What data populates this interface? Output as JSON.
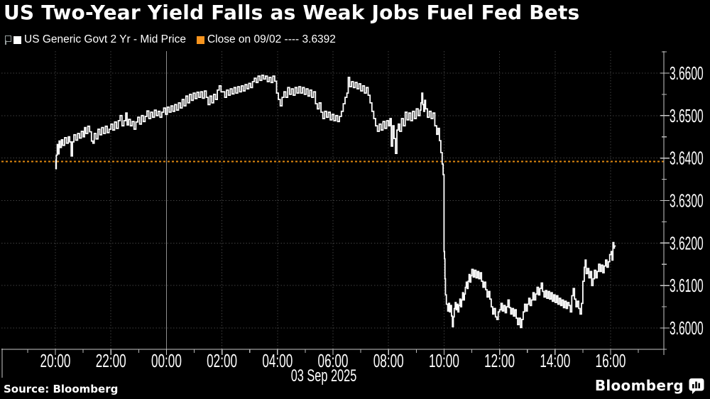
{
  "header": {
    "title": "US Two-Year Yield Falls as Weak Jobs Fuel Fed Bets"
  },
  "legend": {
    "series_label": "US Generic Govt 2 Yr - Mid Price",
    "series_marker_color": "#ffffff",
    "close_label": "Close on 09/02 ---- 3.6392",
    "close_marker_color": "#f7941e"
  },
  "chart_data": {
    "type": "line",
    "line_style": "step",
    "title": "US Two-Year Yield Falls as Weak Jobs Fuel Fed Bets",
    "series_name": "US Generic Govt 2 Yr - Mid Price",
    "series_color": "#ffffff",
    "x_unit": "minutes from 20:00 02-Sep to 16:08 03-Sep",
    "date_label": "03 Sep 2025",
    "grid": "dotted",
    "legend_position": "top-left",
    "ylim": [
      3.595,
      3.6652
    ],
    "y_ticks": [
      {
        "v": 3.66,
        "label": "3.6600"
      },
      {
        "v": 3.65,
        "label": "3.6500"
      },
      {
        "v": 3.64,
        "label": "3.6400"
      },
      {
        "v": 3.63,
        "label": "3.6300"
      },
      {
        "v": 3.62,
        "label": "3.6200"
      },
      {
        "v": 3.61,
        "label": "3.6100"
      },
      {
        "v": 3.6,
        "label": "3.6000"
      }
    ],
    "y_minor_ticks": [
      3.595,
      3.605,
      3.615,
      3.625,
      3.635,
      3.645,
      3.655,
      3.665
    ],
    "x_ticks": [
      {
        "t": 0,
        "label": "20:00"
      },
      {
        "t": 120,
        "label": "22:00"
      },
      {
        "t": 240,
        "label": "00:00",
        "solid_gridline": true
      },
      {
        "t": 360,
        "label": "02:00"
      },
      {
        "t": 480,
        "label": "04:00"
      },
      {
        "t": 600,
        "label": "06:00"
      },
      {
        "t": 720,
        "label": "08:00"
      },
      {
        "t": 840,
        "label": "10:00"
      },
      {
        "t": 960,
        "label": "12:00"
      },
      {
        "t": 1080,
        "label": "14:00"
      },
      {
        "t": 1200,
        "label": "16:00"
      }
    ],
    "x_minor_ticks_t": [
      -60,
      60,
      180,
      300,
      420,
      540,
      660,
      780,
      900,
      1020,
      1140,
      1260
    ],
    "close_line": {
      "label": "Close on 09/02",
      "value": 3.6392,
      "color": "#e0880f",
      "dash": "3 3"
    },
    "points": [
      [
        0,
        3.6395
      ],
      [
        1,
        3.6375
      ],
      [
        2,
        3.6407
      ],
      [
        4,
        3.6432
      ],
      [
        6,
        3.641
      ],
      [
        8,
        3.644
      ],
      [
        10,
        3.6425
      ],
      [
        13,
        3.6443
      ],
      [
        16,
        3.643
      ],
      [
        20,
        3.6448
      ],
      [
        24,
        3.6435
      ],
      [
        28,
        3.645
      ],
      [
        31,
        3.6438
      ],
      [
        34,
        3.6405
      ],
      [
        37,
        3.6438
      ],
      [
        40,
        3.6455
      ],
      [
        44,
        3.6442
      ],
      [
        48,
        3.6458
      ],
      [
        52,
        3.6447
      ],
      [
        56,
        3.6463
      ],
      [
        60,
        3.645
      ],
      [
        63,
        3.6472
      ],
      [
        66,
        3.6458
      ],
      [
        70,
        3.6475
      ],
      [
        74,
        3.6462
      ],
      [
        78,
        3.644
      ],
      [
        81,
        3.6435
      ],
      [
        84,
        3.6458
      ],
      [
        88,
        3.6445
      ],
      [
        92,
        3.6468
      ],
      [
        96,
        3.6455
      ],
      [
        100,
        3.6472
      ],
      [
        104,
        3.6458
      ],
      [
        108,
        3.6475
      ],
      [
        112,
        3.646
      ],
      [
        116,
        3.6468
      ],
      [
        120,
        3.648
      ],
      [
        124,
        3.6466
      ],
      [
        128,
        3.6485
      ],
      [
        132,
        3.647
      ],
      [
        136,
        3.6488
      ],
      [
        140,
        3.65
      ],
      [
        144,
        3.6476
      ],
      [
        148,
        3.6488
      ],
      [
        152,
        3.6506
      ],
      [
        155,
        3.6478
      ],
      [
        158,
        3.6491
      ],
      [
        162,
        3.6476
      ],
      [
        166,
        3.6486
      ],
      [
        170,
        3.6468
      ],
      [
        174,
        3.6485
      ],
      [
        178,
        3.6496
      ],
      [
        182,
        3.648
      ],
      [
        186,
        3.65
      ],
      [
        190,
        3.6486
      ],
      [
        194,
        3.6498
      ],
      [
        198,
        3.6511
      ],
      [
        202,
        3.6493
      ],
      [
        206,
        3.6508
      ],
      [
        210,
        3.6496
      ],
      [
        214,
        3.6513
      ],
      [
        218,
        3.65
      ],
      [
        222,
        3.651
      ],
      [
        226,
        3.6496
      ],
      [
        230,
        3.6508
      ],
      [
        234,
        3.6518
      ],
      [
        238,
        3.6503
      ],
      [
        242,
        3.652
      ],
      [
        246,
        3.6508
      ],
      [
        250,
        3.6523
      ],
      [
        254,
        3.651
      ],
      [
        258,
        3.6526
      ],
      [
        262,
        3.6513
      ],
      [
        266,
        3.653
      ],
      [
        270,
        3.6518
      ],
      [
        274,
        3.6538
      ],
      [
        278,
        3.6523
      ],
      [
        282,
        3.6546
      ],
      [
        286,
        3.653
      ],
      [
        290,
        3.655
      ],
      [
        294,
        3.6536
      ],
      [
        298,
        3.6553
      ],
      [
        302,
        3.654
      ],
      [
        306,
        3.6555
      ],
      [
        310,
        3.6543
      ],
      [
        314,
        3.6556
      ],
      [
        318,
        3.6541
      ],
      [
        322,
        3.6558
      ],
      [
        326,
        3.6543
      ],
      [
        330,
        3.6526
      ],
      [
        334,
        3.6546
      ],
      [
        338,
        3.653
      ],
      [
        342,
        3.655
      ],
      [
        346,
        3.6538
      ],
      [
        350,
        3.656
      ],
      [
        354,
        3.657
      ],
      [
        358,
        3.6556
      ],
      [
        362,
        3.6556
      ],
      [
        366,
        3.6543
      ],
      [
        370,
        3.656
      ],
      [
        374,
        3.6548
      ],
      [
        378,
        3.6563
      ],
      [
        382,
        3.6551
      ],
      [
        386,
        3.6566
      ],
      [
        390,
        3.6553
      ],
      [
        394,
        3.6568
      ],
      [
        398,
        3.6556
      ],
      [
        402,
        3.657
      ],
      [
        406,
        3.6558
      ],
      [
        410,
        3.6573
      ],
      [
        414,
        3.6563
      ],
      [
        418,
        3.6576
      ],
      [
        422,
        3.6566
      ],
      [
        426,
        3.658
      ],
      [
        430,
        3.6588
      ],
      [
        434,
        3.6578
      ],
      [
        438,
        3.6593
      ],
      [
        442,
        3.6583
      ],
      [
        446,
        3.6595
      ],
      [
        450,
        3.6586
      ],
      [
        454,
        3.6593
      ],
      [
        458,
        3.658
      ],
      [
        462,
        3.659
      ],
      [
        466,
        3.6578
      ],
      [
        470,
        3.6593
      ],
      [
        474,
        3.6581
      ],
      [
        478,
        3.6553
      ],
      [
        482,
        3.6538
      ],
      [
        486,
        3.6523
      ],
      [
        490,
        3.6543
      ],
      [
        494,
        3.6556
      ],
      [
        498,
        3.6543
      ],
      [
        502,
        3.6566
      ],
      [
        506,
        3.655
      ],
      [
        510,
        3.6563
      ],
      [
        514,
        3.6548
      ],
      [
        518,
        3.6566
      ],
      [
        522,
        3.6553
      ],
      [
        526,
        3.6568
      ],
      [
        530,
        3.6553
      ],
      [
        534,
        3.6566
      ],
      [
        538,
        3.655
      ],
      [
        542,
        3.6563
      ],
      [
        546,
        3.6546
      ],
      [
        550,
        3.656
      ],
      [
        554,
        3.6543
      ],
      [
        558,
        3.6556
      ],
      [
        562,
        3.6528
      ],
      [
        566,
        3.6516
      ],
      [
        570,
        3.653
      ],
      [
        574,
        3.6508
      ],
      [
        578,
        3.6493
      ],
      [
        582,
        3.651
      ],
      [
        586,
        3.6496
      ],
      [
        590,
        3.6508
      ],
      [
        594,
        3.649
      ],
      [
        598,
        3.6503
      ],
      [
        602,
        3.6488
      ],
      [
        606,
        3.65
      ],
      [
        610,
        3.6486
      ],
      [
        614,
        3.6498
      ],
      [
        618,
        3.651
      ],
      [
        622,
        3.6528
      ],
      [
        626,
        3.6543
      ],
      [
        630,
        3.6553
      ],
      [
        633,
        3.659
      ],
      [
        636,
        3.6568
      ],
      [
        640,
        3.658
      ],
      [
        644,
        3.6566
      ],
      [
        648,
        3.6578
      ],
      [
        652,
        3.6563
      ],
      [
        656,
        3.6575
      ],
      [
        660,
        3.6558
      ],
      [
        664,
        3.657
      ],
      [
        668,
        3.6553
      ],
      [
        672,
        3.6566
      ],
      [
        676,
        3.6548
      ],
      [
        680,
        3.653
      ],
      [
        684,
        3.651
      ],
      [
        688,
        3.6493
      ],
      [
        692,
        3.6476
      ],
      [
        696,
        3.6463
      ],
      [
        700,
        3.648
      ],
      [
        704,
        3.6466
      ],
      [
        708,
        3.6486
      ],
      [
        712,
        3.647
      ],
      [
        716,
        3.6488
      ],
      [
        720,
        3.6476
      ],
      [
        723,
        3.6493
      ],
      [
        726,
        3.6428
      ],
      [
        729,
        3.6476
      ],
      [
        732,
        3.6446
      ],
      [
        735,
        3.6411
      ],
      [
        738,
        3.6466
      ],
      [
        741,
        3.648
      ],
      [
        744,
        3.6463
      ],
      [
        748,
        3.6493
      ],
      [
        752,
        3.6476
      ],
      [
        756,
        3.6508
      ],
      [
        760,
        3.649
      ],
      [
        764,
        3.6506
      ],
      [
        768,
        3.6488
      ],
      [
        772,
        3.651
      ],
      [
        776,
        3.6493
      ],
      [
        780,
        3.6516
      ],
      [
        784,
        3.65
      ],
      [
        788,
        3.6513
      ],
      [
        790,
        3.653
      ],
      [
        792,
        3.6553
      ],
      [
        794,
        3.6526
      ],
      [
        796,
        3.651
      ],
      [
        798,
        3.6536
      ],
      [
        800,
        3.6516
      ],
      [
        804,
        3.6496
      ],
      [
        808,
        3.651
      ],
      [
        812,
        3.6493
      ],
      [
        816,
        3.6506
      ],
      [
        820,
        3.6476
      ],
      [
        824,
        3.6456
      ],
      [
        827,
        3.647
      ],
      [
        830,
        3.6441
      ],
      [
        833,
        3.6413
      ],
      [
        836,
        3.6386
      ],
      [
        838,
        3.6361
      ],
      [
        840,
        3.618
      ],
      [
        841,
        3.6163
      ],
      [
        842,
        3.6116
      ],
      [
        843,
        3.6078
      ],
      [
        845,
        3.6056
      ],
      [
        848,
        3.604
      ],
      [
        850,
        3.6058
      ],
      [
        852,
        3.6038
      ],
      [
        854,
        3.6053
      ],
      [
        856,
        3.6028
      ],
      [
        858,
        3.6003
      ],
      [
        860,
        3.6026
      ],
      [
        862,
        3.6046
      ],
      [
        864,
        3.606
      ],
      [
        866,
        3.6043
      ],
      [
        868,
        3.6056
      ],
      [
        870,
        3.6038
      ],
      [
        872,
        3.6053
      ],
      [
        874,
        3.6068
      ],
      [
        876,
        3.605
      ],
      [
        878,
        3.6066
      ],
      [
        880,
        3.6083
      ],
      [
        882,
        3.6066
      ],
      [
        884,
        3.608
      ],
      [
        886,
        3.6096
      ],
      [
        888,
        3.6108
      ],
      [
        890,
        3.6093
      ],
      [
        892,
        3.611
      ],
      [
        894,
        3.6126
      ],
      [
        896,
        3.6108
      ],
      [
        898,
        3.6123
      ],
      [
        900,
        3.6138
      ],
      [
        903,
        3.612
      ],
      [
        906,
        3.6136
      ],
      [
        909,
        3.6118
      ],
      [
        912,
        3.6133
      ],
      [
        915,
        3.6116
      ],
      [
        918,
        3.613
      ],
      [
        921,
        3.611
      ],
      [
        924,
        3.6096
      ],
      [
        927,
        3.6108
      ],
      [
        930,
        3.609
      ],
      [
        933,
        3.6073
      ],
      [
        936,
        3.6086
      ],
      [
        939,
        3.6068
      ],
      [
        942,
        3.605
      ],
      [
        945,
        3.6033
      ],
      [
        948,
        3.6046
      ],
      [
        951,
        3.6026
      ],
      [
        954,
        3.602
      ],
      [
        957,
        3.6038
      ],
      [
        960,
        3.6043
      ],
      [
        963,
        3.6058
      ],
      [
        966,
        3.604
      ],
      [
        969,
        3.6053
      ],
      [
        972,
        3.6036
      ],
      [
        975,
        3.605
      ],
      [
        978,
        3.6066
      ],
      [
        981,
        3.6048
      ],
      [
        984,
        3.6033
      ],
      [
        987,
        3.6046
      ],
      [
        990,
        3.6028
      ],
      [
        993,
        3.6043
      ],
      [
        996,
        3.6023
      ],
      [
        999,
        3.6008
      ],
      [
        1002,
        3.6023
      ],
      [
        1005,
        3.6001
      ],
      [
        1008,
        3.602
      ],
      [
        1011,
        3.6038
      ],
      [
        1014,
        3.6056
      ],
      [
        1017,
        3.604
      ],
      [
        1020,
        3.6056
      ],
      [
        1023,
        3.607
      ],
      [
        1026,
        3.6053
      ],
      [
        1029,
        3.6066
      ],
      [
        1032,
        3.6083
      ],
      [
        1035,
        3.6066
      ],
      [
        1038,
        3.608
      ],
      [
        1041,
        3.6096
      ],
      [
        1044,
        3.6078
      ],
      [
        1047,
        3.6093
      ],
      [
        1050,
        3.6106
      ],
      [
        1053,
        3.6086
      ],
      [
        1056,
        3.6073
      ],
      [
        1059,
        3.6088
      ],
      [
        1062,
        3.607
      ],
      [
        1065,
        3.6086
      ],
      [
        1068,
        3.6068
      ],
      [
        1071,
        3.6083
      ],
      [
        1074,
        3.6063
      ],
      [
        1077,
        3.6078
      ],
      [
        1080,
        3.606
      ],
      [
        1083,
        3.6076
      ],
      [
        1086,
        3.6056
      ],
      [
        1089,
        3.607
      ],
      [
        1092,
        3.6053
      ],
      [
        1095,
        3.6066
      ],
      [
        1098,
        3.6048
      ],
      [
        1101,
        3.6063
      ],
      [
        1104,
        3.6046
      ],
      [
        1107,
        3.606
      ],
      [
        1110,
        3.6053
      ],
      [
        1113,
        3.6038
      ],
      [
        1116,
        3.6076
      ],
      [
        1119,
        3.6093
      ],
      [
        1122,
        3.6068
      ],
      [
        1125,
        3.605
      ],
      [
        1128,
        3.6063
      ],
      [
        1131,
        3.6046
      ],
      [
        1134,
        3.6033
      ],
      [
        1137,
        3.6058
      ],
      [
        1140,
        3.611
      ],
      [
        1143,
        3.6143
      ],
      [
        1145,
        3.616
      ],
      [
        1147,
        3.6128
      ],
      [
        1150,
        3.614
      ],
      [
        1153,
        3.6118
      ],
      [
        1156,
        3.6133
      ],
      [
        1159,
        3.61
      ],
      [
        1162,
        3.6116
      ],
      [
        1165,
        3.6136
      ],
      [
        1168,
        3.6118
      ],
      [
        1171,
        3.6133
      ],
      [
        1174,
        3.615
      ],
      [
        1177,
        3.6133
      ],
      [
        1180,
        3.6148
      ],
      [
        1183,
        3.613
      ],
      [
        1186,
        3.6146
      ],
      [
        1189,
        3.616
      ],
      [
        1192,
        3.6143
      ],
      [
        1195,
        3.6156
      ],
      [
        1198,
        3.6173
      ],
      [
        1201,
        3.618
      ],
      [
        1203,
        3.616
      ],
      [
        1205,
        3.6201
      ],
      [
        1207,
        3.6188
      ],
      [
        1208,
        3.6193
      ]
    ]
  },
  "footer": {
    "source": "Source: Bloomberg",
    "brand": "Bloomberg"
  }
}
